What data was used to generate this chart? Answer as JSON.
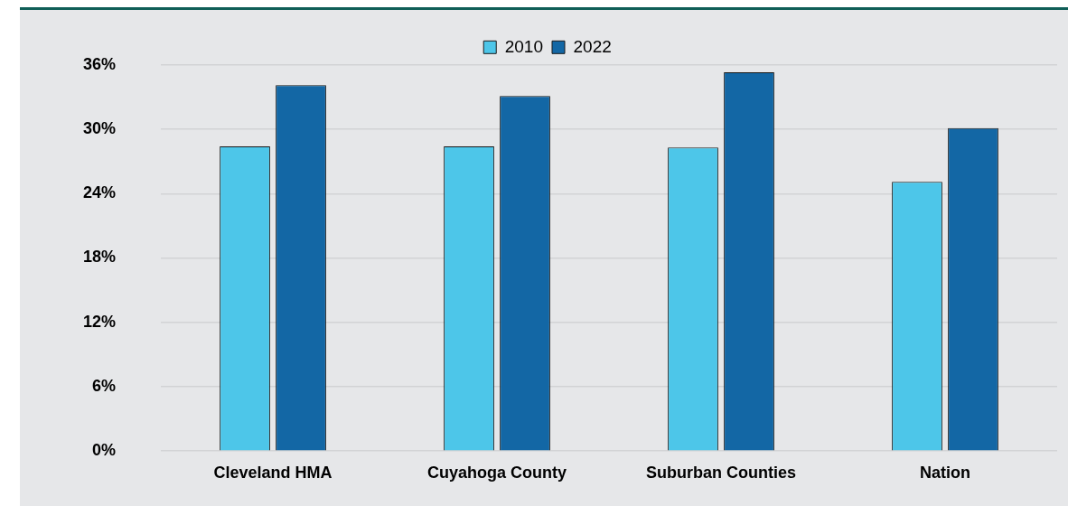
{
  "chart_data": {
    "type": "bar",
    "categories": [
      "Cleveland HMA",
      "Cuyahoga County",
      "Suburban Counties",
      "Nation"
    ],
    "series": [
      {
        "name": "2010",
        "color": "#4dc6e9",
        "values": [
          28.4,
          28.4,
          28.3,
          25.1
        ]
      },
      {
        "name": "2022",
        "color": "#1367a5",
        "values": [
          34.1,
          33.1,
          35.3,
          30.1
        ]
      }
    ],
    "ylim": [
      0,
      36
    ],
    "yticks": [
      {
        "value": 0,
        "label": "0%"
      },
      {
        "value": 6,
        "label": "6%"
      },
      {
        "value": 12,
        "label": "12%"
      },
      {
        "value": 18,
        "label": "18%"
      },
      {
        "value": 24,
        "label": "24%"
      },
      {
        "value": 30,
        "label": "30%"
      },
      {
        "value": 36,
        "label": "36%"
      }
    ],
    "grid": "y",
    "legend": "top"
  }
}
